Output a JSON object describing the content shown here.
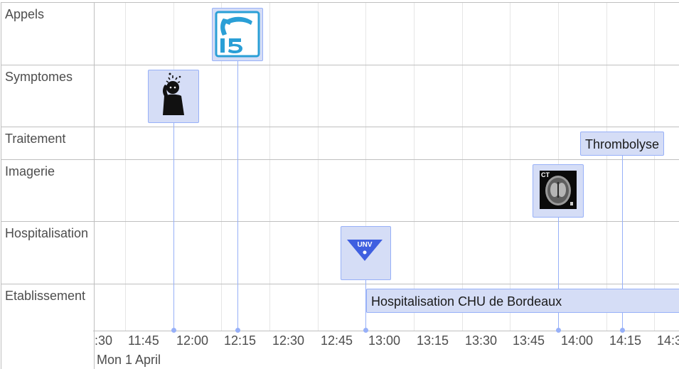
{
  "groups": [
    {
      "label": "Appels"
    },
    {
      "label": "Symptomes"
    },
    {
      "label": "Traitement"
    },
    {
      "label": "Imagerie"
    },
    {
      "label": "Hospitalisation"
    },
    {
      "label": "Etablissement"
    }
  ],
  "axis": {
    "ticks": [
      ":30",
      "11:45",
      "12:00",
      "12:15",
      "12:30",
      "12:45",
      "13:00",
      "13:15",
      "13:30",
      "13:45",
      "14:00",
      "14:15",
      "14:3"
    ],
    "date": "Mon 1 April"
  },
  "items": {
    "appel_icon": "phone-15-icon",
    "symptome_icon": "headache-person-icon",
    "imagerie_icon": "ct-scan-icon",
    "hospitalisation_icon": "unv-icon",
    "traitement_label": "Thrombolyse",
    "etablissement_label": "Hospitalisation CHU de Bordeaux"
  },
  "colors": {
    "item_fill": "#d5ddf6",
    "item_border": "#97b0f8",
    "phone_blue": "#2a9fd6",
    "unv_blue": "#3f5fe0"
  }
}
